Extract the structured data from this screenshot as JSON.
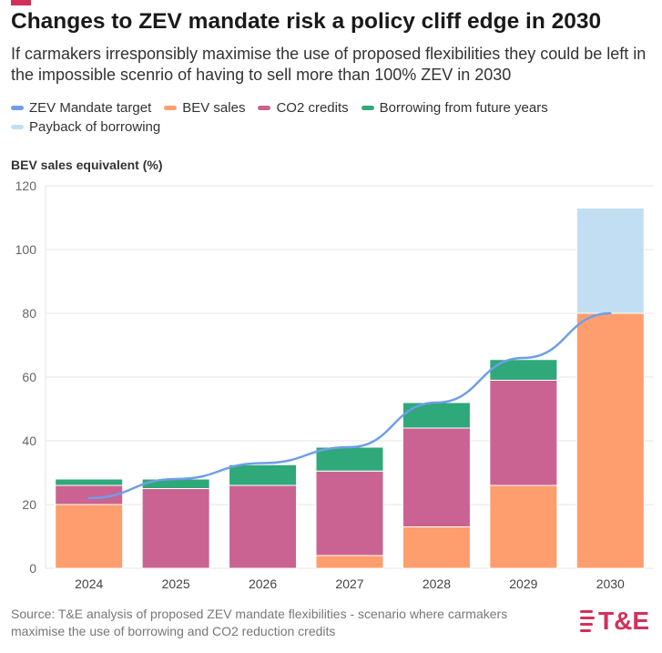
{
  "title": "Changes to ZEV mandate risk a policy cliff edge in 2030",
  "subtitle": "If carmakers irresponsibly maximise the use of proposed flexibilities they could be left in the impossible scenrio of having to sell more than 100% ZEV in 2030",
  "source": "Source: T&E analysis of proposed ZEV mandate flexibilities - scenario where carmakers maximise the use of borrowing and CO2 reduction credits",
  "logo_text": "T&E",
  "colors": {
    "accent": "#d1305b",
    "grid": "#e6e6e6",
    "axis_text": "#666666"
  },
  "chart_data": {
    "type": "bar",
    "stacked": true,
    "ylabel": "BEV sales equivalent (%)",
    "ylim": [
      0,
      120
    ],
    "yticks": [
      0,
      20,
      40,
      60,
      80,
      100,
      120
    ],
    "grid": true,
    "legend_position": "top",
    "categories": [
      "2024",
      "2025",
      "2026",
      "2027",
      "2028",
      "2029",
      "2030"
    ],
    "series": [
      {
        "name": "BEV sales",
        "color": "#fe9e6e",
        "values": [
          20,
          0,
          0,
          4,
          13,
          26,
          80
        ]
      },
      {
        "name": "CO2 credits",
        "color": "#ca6392",
        "values": [
          6,
          25,
          26,
          26.5,
          31,
          33,
          0
        ]
      },
      {
        "name": "Borrowing from future years",
        "color": "#2fa87a",
        "values": [
          2,
          3,
          6.5,
          7.5,
          8,
          6.5,
          0
        ]
      },
      {
        "name": "Payback of borrowing",
        "color": "#c2def3",
        "values": [
          0,
          0,
          0,
          0,
          0,
          0,
          33
        ]
      }
    ],
    "line": {
      "name": "ZEV Mandate target",
      "color": "#6f9ee8",
      "values": [
        22,
        28,
        33,
        38,
        52,
        66,
        80
      ]
    },
    "legend": [
      {
        "name": "ZEV Mandate target",
        "color": "#6f9ee8"
      },
      {
        "name": "BEV sales",
        "color": "#fe9e6e"
      },
      {
        "name": "CO2 credits",
        "color": "#ca6392"
      },
      {
        "name": "Borrowing from future years",
        "color": "#2fa87a"
      },
      {
        "name": "Payback of borrowing",
        "color": "#c2def3"
      }
    ]
  }
}
